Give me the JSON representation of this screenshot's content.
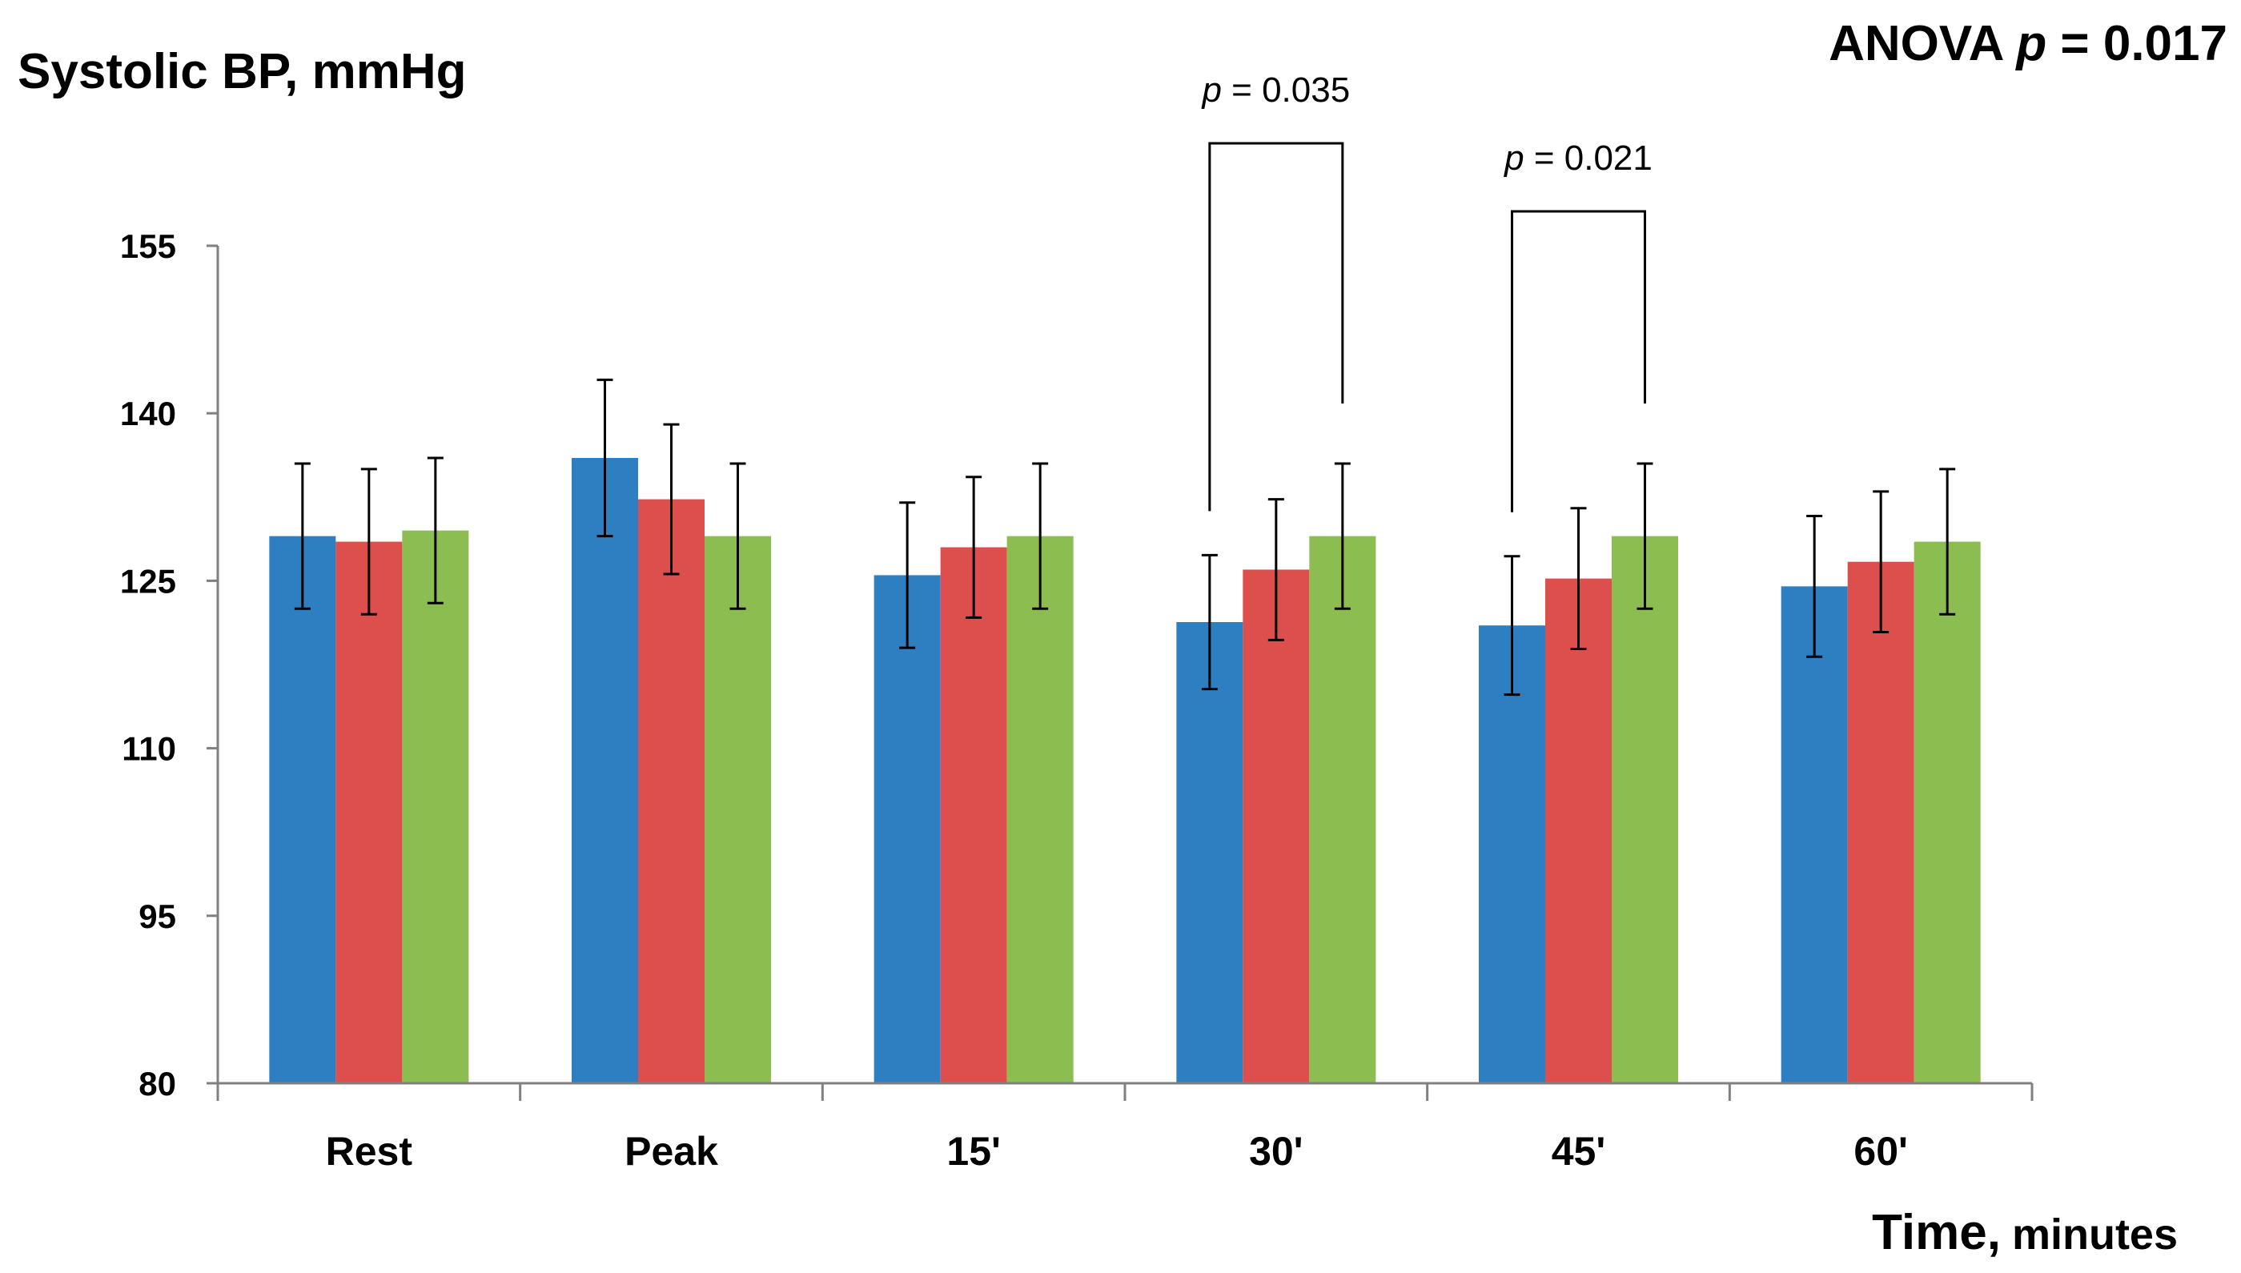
{
  "chart_data": {
    "type": "bar",
    "ylabel": "Systolic BP, mmHg",
    "xlabel_main": "Time,",
    "xlabel_unit": "minutes",
    "anova": {
      "prefix": "ANOVA ",
      "p_symbol": "p",
      "value": " = 0.017"
    },
    "categories": [
      "Rest",
      "Peak",
      "15'",
      "30'",
      "45'",
      "60'"
    ],
    "ylim": [
      80,
      155
    ],
    "yticks": [
      "155",
      "140",
      "125",
      "110",
      "95",
      "80"
    ],
    "ytick_values": [
      155,
      140,
      125,
      110,
      95,
      80
    ],
    "grid": false,
    "series": [
      {
        "color": "#2e7fc2",
        "values": [
          129,
          136,
          125.5,
          121.3,
          121,
          124.5
        ],
        "errors": [
          6.5,
          7,
          6.5,
          6,
          6.2,
          6.3
        ]
      },
      {
        "color": "#dc4f4d",
        "values": [
          128.5,
          132.3,
          128,
          126,
          125.2,
          126.7
        ],
        "errors": [
          6.5,
          6.7,
          6.3,
          6.3,
          6.3,
          6.3
        ]
      },
      {
        "color": "#8cbd51",
        "values": [
          129.5,
          129,
          129,
          129,
          129,
          128.5
        ],
        "errors": [
          6.5,
          6.5,
          6.5,
          6.5,
          6.5,
          6.5
        ]
      }
    ],
    "annotations": [
      {
        "p_symbol": "p",
        "text": " = 0.035",
        "category_index": 3,
        "from_series": 0,
        "to_series": 2
      },
      {
        "p_symbol": "p",
        "text": " = 0.021",
        "category_index": 4,
        "from_series": 0,
        "to_series": 2
      }
    ]
  }
}
